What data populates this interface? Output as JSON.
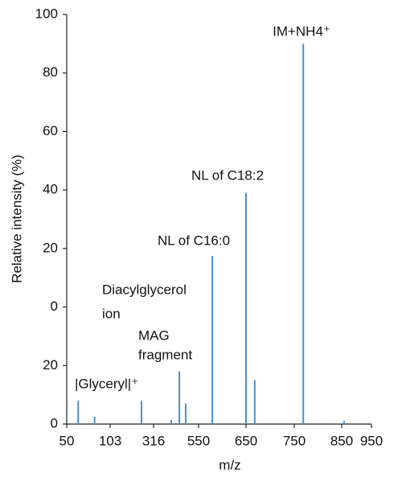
{
  "chart_data": {
    "type": "bar",
    "x_label": "m/z",
    "y_label": "Relative intensity (%)",
    "x": [
      64,
      84,
      257,
      408,
      450,
      483,
      579,
      650,
      668,
      769,
      858
    ],
    "values": [
      -32,
      -37.5,
      -32,
      -38.6,
      -22,
      -33,
      17.5,
      39,
      -25,
      90,
      -39
    ],
    "color": "#4a8fc9",
    "xlim": [
      50,
      950
    ],
    "xticks": [
      50,
      103,
      316,
      550,
      650,
      750,
      850,
      950
    ],
    "ylim": [
      -40,
      100
    ],
    "yticks": [
      {
        "value": -40,
        "label": "0"
      },
      {
        "value": -20,
        "label": "20"
      },
      0,
      20,
      40,
      60,
      80,
      100
    ],
    "annotations": [
      "IM+NH4⁺",
      "NL of C18:2",
      "NL of C16:0",
      "Diacylglycerol",
      "ion",
      "MAG",
      "fragment",
      "|Glyceryl|⁺"
    ]
  }
}
